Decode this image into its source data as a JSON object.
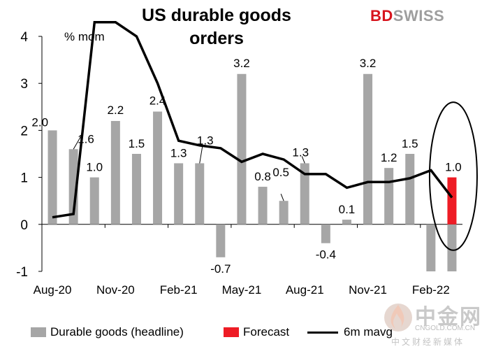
{
  "title": "US durable goods orders",
  "logo": {
    "part1": "BD",
    "part2": "SWISS"
  },
  "watermark": {
    "cn": "中金网",
    "en": "CNGOLD.COM.CN",
    "sub": "中文财经新媒体"
  },
  "colors": {
    "bar": "#a6a6a6",
    "forecast": "#ee1c25",
    "line": "#000000",
    "ellipse": "#000000"
  },
  "chart_data": {
    "type": "bar",
    "unit_label": "% mom",
    "ylim": [
      -1,
      4
    ],
    "yticks": [
      -1,
      0,
      1,
      2,
      3,
      4
    ],
    "x_tick_labels": [
      "Aug-20",
      "Nov-20",
      "Feb-21",
      "May-21",
      "Aug-21",
      "Nov-21",
      "Feb-22"
    ],
    "x_tick_index": [
      0,
      3,
      6,
      9,
      12,
      15,
      18
    ],
    "categories": [
      "Aug-20",
      "Sep-20",
      "Oct-20",
      "Nov-20",
      "Dec-20",
      "Jan-21",
      "Feb-21",
      "Mar-21",
      "Apr-21",
      "May-21",
      "Jun-21",
      "Jul-21",
      "Aug-21",
      "Sep-21",
      "Oct-21",
      "Nov-21",
      "Dec-21",
      "Jan-22",
      "Feb-22",
      "Mar-22"
    ],
    "series": [
      {
        "name": "Durable goods (headline)",
        "type": "bar",
        "values": [
          2.0,
          1.6,
          1.0,
          2.2,
          1.5,
          2.4,
          1.3,
          1.3,
          -0.7,
          3.2,
          0.8,
          0.5,
          1.3,
          -0.4,
          0.1,
          3.2,
          1.2,
          1.5,
          -1.0,
          -1.0
        ],
        "labels": [
          "2.0",
          "1.6",
          "1.0",
          "2.2",
          "1.5",
          "2.4",
          "1.3",
          "1.3",
          "-0.7",
          "3.2",
          "0.8",
          "0.5",
          "1.3",
          "-0.4",
          "0.1",
          "3.2",
          "1.2",
          "1.5",
          "",
          ""
        ]
      },
      {
        "name": "Forecast",
        "type": "bar",
        "index": 19,
        "value": 1.0,
        "label": "1.0"
      },
      {
        "name": "6m mavg",
        "type": "line",
        "values": [
          0.15,
          0.22,
          4.3,
          4.3,
          4.0,
          3.0,
          1.78,
          1.68,
          1.62,
          1.33,
          1.5,
          1.38,
          1.07,
          1.07,
          0.78,
          0.9,
          0.9,
          0.98,
          1.15,
          0.57
        ]
      }
    ]
  },
  "legend": [
    {
      "label": "Durable goods (headline)"
    },
    {
      "label": "Forecast"
    },
    {
      "label": "6m mavg"
    }
  ]
}
